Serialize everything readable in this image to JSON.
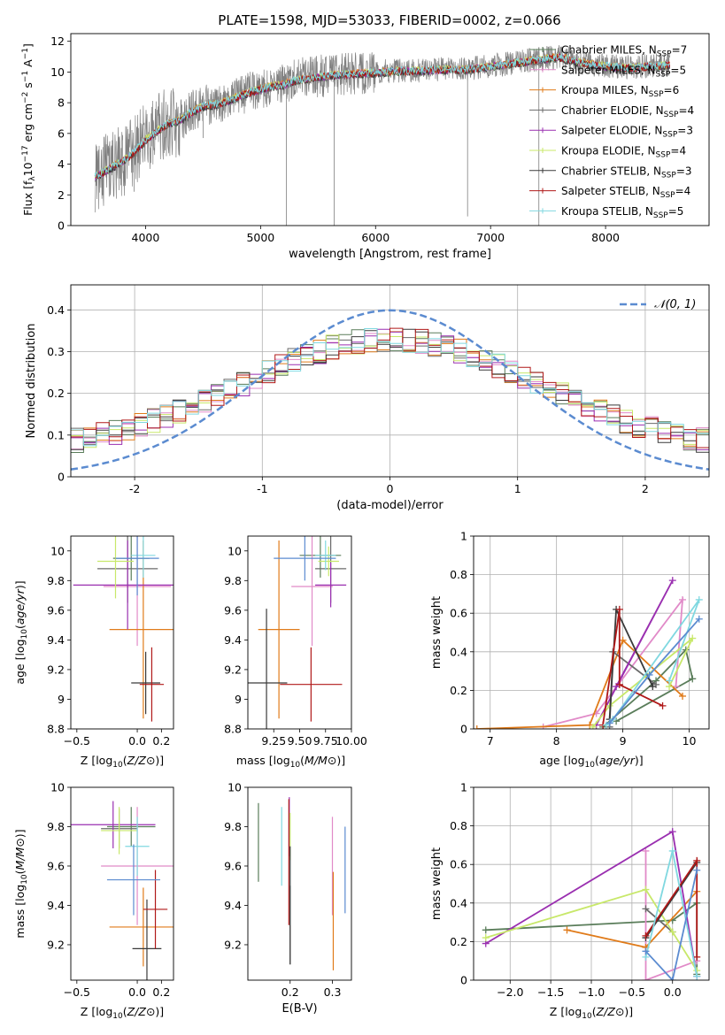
{
  "figure": {
    "title": "PLATE=1598, MJD=53033, FIBERID=0002, z=0.066"
  },
  "chart_data": [
    {
      "id": "spectrum",
      "type": "line",
      "xlabel": "wavelength [Angstrom, rest frame]",
      "ylabel": "Flux [f_λ10^-17 erg cm^-2 s^-1 A^-1]",
      "xlim": [
        3350,
        8900
      ],
      "ylim": [
        0,
        12.5
      ],
      "xticks": [
        4000,
        5000,
        6000,
        7000,
        8000
      ],
      "yticks": [
        0,
        2,
        4,
        6,
        8,
        10,
        12
      ],
      "grid": false,
      "legend_position": "upper-right",
      "data_series": {
        "name": "",
        "color": "#808080",
        "x_range": [
          3560,
          8560
        ],
        "y_start": 2.8,
        "y_end": 10.5
      },
      "models": [
        {
          "name": "Chabrier MILES",
          "nssp": "7",
          "color": "#5a7d5a"
        },
        {
          "name": "Salpeter MILES",
          "nssp": "5",
          "color": "#e18ac8"
        },
        {
          "name": "Kroupa MILES",
          "nssp": "6",
          "color": "#e07b1a"
        },
        {
          "name": "Chabrier ELODIE",
          "nssp": "4",
          "color": "#6a6a6a"
        },
        {
          "name": "Salpeter ELODIE",
          "nssp": "3",
          "color": "#9a2fb0"
        },
        {
          "name": "Kroupa ELODIE",
          "nssp": "4",
          "color": "#c8e86a"
        },
        {
          "name": "Chabrier STELIB",
          "nssp": "3",
          "color": "#3a3a3a"
        },
        {
          "name": "Salpeter STELIB",
          "nssp": "4",
          "color": "#b01818"
        },
        {
          "name": "Kroupa STELIB",
          "nssp": "5",
          "color": "#80d8e0"
        }
      ],
      "model_continuum": [
        [
          3560,
          3.2
        ],
        [
          3700,
          3.8
        ],
        [
          3800,
          4.2
        ],
        [
          3900,
          4.8
        ],
        [
          4000,
          5.6
        ],
        [
          4100,
          6.2
        ],
        [
          4200,
          6.7
        ],
        [
          4300,
          6.9
        ],
        [
          4400,
          7.4
        ],
        [
          4500,
          7.8
        ],
        [
          4600,
          7.9
        ],
        [
          4700,
          8.1
        ],
        [
          4800,
          8.4
        ],
        [
          4900,
          8.7
        ],
        [
          5000,
          8.9
        ],
        [
          5100,
          9.1
        ],
        [
          5200,
          9.2
        ],
        [
          5300,
          9.5
        ],
        [
          5400,
          9.6
        ],
        [
          5500,
          9.7
        ],
        [
          5600,
          9.8
        ],
        [
          5800,
          9.9
        ],
        [
          6000,
          10.0
        ],
        [
          6200,
          10.1
        ],
        [
          6400,
          10.1
        ],
        [
          6600,
          10.2
        ],
        [
          6800,
          10.2
        ],
        [
          7000,
          10.4
        ],
        [
          7200,
          10.6
        ],
        [
          7400,
          10.8
        ],
        [
          7600,
          11.0
        ],
        [
          7800,
          10.6
        ],
        [
          8000,
          10.4
        ],
        [
          8200,
          10.3
        ],
        [
          8400,
          10.4
        ],
        [
          8560,
          10.5
        ]
      ]
    },
    {
      "id": "residuals",
      "type": "line",
      "xlabel": "(data-model)/error",
      "ylabel": "Normed distribution",
      "xlim": [
        -2.5,
        2.5
      ],
      "ylim": [
        0,
        0.46
      ],
      "xticks": [
        -2,
        -1,
        0,
        1,
        2
      ],
      "yticks": [
        0.0,
        0.1,
        0.2,
        0.3,
        0.4
      ],
      "grid": true,
      "legend_position": "upper-right",
      "legend_label": "𝒩(0, 1)",
      "gaussian": {
        "mu": 0,
        "sigma": 1,
        "color": "#5b8bd0"
      },
      "histogram_bin_width": 0.1
    },
    {
      "id": "age_vs_Z",
      "type": "scatter",
      "xlabel": "Z [log10(Z/Z⊙)]",
      "ylabel": "age [log10(age/yr)]",
      "xlim": [
        -0.55,
        0.3
      ],
      "ylim": [
        8.8,
        10.1
      ],
      "xticks": [
        -0.5,
        0.0,
        0.2
      ],
      "xticklabels": [
        "−0.5",
        "0.0",
        "0.2"
      ],
      "yticks": [
        8.8,
        9.0,
        9.2,
        9.4,
        9.6,
        9.8,
        10.0
      ],
      "points": [
        {
          "x": -0.05,
          "y": 9.95,
          "xerr": 0.15,
          "yerr": 0.15,
          "color": "#5a7d5a"
        },
        {
          "x": 0.0,
          "y": 9.76,
          "xerr": 0.28,
          "yerr": 0.4,
          "color": "#e18ac8"
        },
        {
          "x": 0.05,
          "y": 9.47,
          "xerr": 0.28,
          "yerr": 0.6,
          "color": "#e07b1a"
        },
        {
          "x": -0.08,
          "y": 9.88,
          "xerr": 0.25,
          "yerr": 0.23,
          "color": "#6a6a6a"
        },
        {
          "x": -0.08,
          "y": 9.77,
          "xerr": 0.45,
          "yerr": 0.3,
          "color": "#9a2fb0"
        },
        {
          "x": -0.18,
          "y": 9.93,
          "xerr": 0.15,
          "yerr": 0.25,
          "color": "#c8e86a"
        },
        {
          "x": 0.07,
          "y": 9.11,
          "xerr": 0.12,
          "yerr": 0.21,
          "color": "#3a3a3a"
        },
        {
          "x": 0.12,
          "y": 9.1,
          "xerr": 0.1,
          "yerr": 0.25,
          "color": "#b01818"
        },
        {
          "x": 0.05,
          "y": 9.97,
          "xerr": 0.1,
          "yerr": 0.15,
          "color": "#80d8e0"
        },
        {
          "x": 0.0,
          "y": 9.95,
          "xerr": 0.18,
          "yerr": 0.25,
          "color": "#5b8bd0"
        }
      ]
    },
    {
      "id": "age_vs_mass",
      "type": "scatter",
      "xlabel": "mass [log10(M/M⊙)]",
      "ylabel": "",
      "xlim": [
        9.0,
        10.0
      ],
      "ylim": [
        8.8,
        10.1
      ],
      "xticks": [
        9.25,
        9.5,
        9.75,
        10.0
      ],
      "xticklabels": [
        "9.25",
        "9.50",
        "9.75",
        "10.00"
      ],
      "yticks": [
        8.8,
        9.0,
        9.2,
        9.4,
        9.6,
        9.8,
        10.0
      ],
      "points": [
        {
          "x": 9.7,
          "y": 9.97,
          "xerr": 0.2,
          "yerr": 0.15,
          "color": "#5a7d5a"
        },
        {
          "x": 9.62,
          "y": 9.76,
          "xerr": 0.2,
          "yerr": 0.4,
          "color": "#e18ac8"
        },
        {
          "x": 9.3,
          "y": 9.47,
          "xerr": 0.2,
          "yerr": 0.6,
          "color": "#e07b1a"
        },
        {
          "x": 9.8,
          "y": 9.88,
          "xerr": 0.15,
          "yerr": 0.23,
          "color": "#6a6a6a"
        },
        {
          "x": 9.8,
          "y": 9.77,
          "xerr": 0.15,
          "yerr": 0.15,
          "color": "#9a2fb0"
        },
        {
          "x": 9.78,
          "y": 9.93,
          "xerr": 0.1,
          "yerr": 0.1,
          "color": "#c8e86a"
        },
        {
          "x": 9.18,
          "y": 9.11,
          "xerr": 0.2,
          "yerr": 0.5,
          "color": "#3a3a3a"
        },
        {
          "x": 9.61,
          "y": 9.1,
          "xerr": 0.3,
          "yerr": 0.25,
          "color": "#b01818"
        },
        {
          "x": 9.75,
          "y": 9.97,
          "xerr": 0.1,
          "yerr": 0.1,
          "color": "#80d8e0"
        },
        {
          "x": 9.55,
          "y": 9.95,
          "xerr": 0.3,
          "yerr": 0.15,
          "color": "#5b8bd0"
        }
      ]
    },
    {
      "id": "mw_vs_age",
      "type": "line",
      "xlabel": "age [log10(age/yr)]",
      "ylabel": "mass weight",
      "xlim": [
        6.75,
        10.3
      ],
      "ylim": [
        0,
        1.0
      ],
      "xticks": [
        7,
        8,
        9,
        10
      ],
      "yticks": [
        0.0,
        0.2,
        0.4,
        0.6,
        0.8,
        1.0
      ],
      "grid": true,
      "series": [
        {
          "color": "#5a7d5a",
          "points": [
            [
              8.7,
              0.01
            ],
            [
              9.5,
              0.25
            ],
            [
              9.95,
              0.41
            ],
            [
              10.05,
              0.26
            ],
            [
              8.9,
              0.04
            ]
          ]
        },
        {
          "color": "#e18ac8",
          "points": [
            [
              7.8,
              0.01
            ],
            [
              8.6,
              0.08
            ],
            [
              9.9,
              0.67
            ],
            [
              9.8,
              0.22
            ]
          ]
        },
        {
          "color": "#e07b1a",
          "points": [
            [
              6.8,
              0.0
            ],
            [
              8.5,
              0.02
            ],
            [
              9.0,
              0.46
            ],
            [
              9.9,
              0.17
            ]
          ]
        },
        {
          "color": "#6a6a6a",
          "points": [
            [
              8.8,
              0.01
            ],
            [
              8.85,
              0.4
            ],
            [
              9.5,
              0.23
            ]
          ]
        },
        {
          "color": "#9a2fb0",
          "points": [
            [
              8.6,
              0.02
            ],
            [
              9.75,
              0.77
            ],
            [
              8.9,
              0.22
            ]
          ]
        },
        {
          "color": "#c8e86a",
          "points": [
            [
              8.55,
              0.01
            ],
            [
              8.8,
              0.12
            ],
            [
              10.05,
              0.47
            ],
            [
              9.7,
              0.22
            ]
          ]
        },
        {
          "color": "#3a3a3a",
          "points": [
            [
              8.8,
              0.05
            ],
            [
              8.9,
              0.62
            ],
            [
              9.45,
              0.22
            ]
          ]
        },
        {
          "color": "#b01818",
          "points": [
            [
              8.7,
              0.02
            ],
            [
              8.95,
              0.62
            ],
            [
              8.95,
              0.23
            ],
            [
              9.6,
              0.12
            ]
          ]
        },
        {
          "color": "#80d8e0",
          "points": [
            [
              8.75,
              0.02
            ],
            [
              8.85,
              0.05
            ],
            [
              10.15,
              0.67
            ],
            [
              9.7,
              0.25
            ]
          ]
        },
        {
          "color": "#5b8bd0",
          "points": [
            [
              8.8,
              0.03
            ],
            [
              9.4,
              0.28
            ],
            [
              10.15,
              0.57
            ]
          ]
        }
      ]
    },
    {
      "id": "mass_vs_Z",
      "type": "scatter",
      "xlabel": "Z [log10(Z/Z⊙)]",
      "ylabel": "mass [log10(M/M⊙)]",
      "xlim": [
        -0.55,
        0.3
      ],
      "ylim": [
        9.02,
        10.0
      ],
      "xticks": [
        -0.5,
        0.0,
        0.2
      ],
      "xticklabels": [
        "−0.5",
        "0.0",
        "0.2"
      ],
      "yticks": [
        9.2,
        9.4,
        9.6,
        9.8,
        10.0
      ],
      "points": [
        {
          "x": -0.05,
          "y": 9.8,
          "xerr": 0.2,
          "yerr": 0.1,
          "color": "#5a7d5a"
        },
        {
          "x": 0.0,
          "y": 9.6,
          "xerr": 0.3,
          "yerr": 0.3,
          "color": "#e18ac8"
        },
        {
          "x": 0.05,
          "y": 9.29,
          "xerr": 0.28,
          "yerr": 0.2,
          "color": "#e07b1a"
        },
        {
          "x": -0.15,
          "y": 9.79,
          "xerr": 0.15,
          "yerr": 0.1,
          "color": "#6a6a6a"
        },
        {
          "x": -0.2,
          "y": 9.81,
          "xerr": 0.35,
          "yerr": 0.12,
          "color": "#9a2fb0"
        },
        {
          "x": -0.15,
          "y": 9.78,
          "xerr": 0.15,
          "yerr": 0.12,
          "color": "#c8e86a"
        },
        {
          "x": 0.08,
          "y": 9.18,
          "xerr": 0.12,
          "yerr": 0.25,
          "color": "#3a3a3a"
        },
        {
          "x": 0.15,
          "y": 9.38,
          "xerr": 0.1,
          "yerr": 0.2,
          "color": "#b01818"
        },
        {
          "x": 0.0,
          "y": 9.7,
          "xerr": 0.1,
          "yerr": 0.15,
          "color": "#80d8e0"
        },
        {
          "x": -0.03,
          "y": 9.53,
          "xerr": 0.22,
          "yerr": 0.18,
          "color": "#5b8bd0"
        }
      ]
    },
    {
      "id": "mass_vs_ebv",
      "type": "scatter",
      "xlabel": "E(B-V)",
      "ylabel": "",
      "xlim": [
        0.1,
        0.345
      ],
      "ylim": [
        9.02,
        10.0
      ],
      "xticks": [
        0.2,
        0.3
      ],
      "xticklabels": [
        "0.2",
        "0.3"
      ],
      "yticks": [
        9.2,
        9.4,
        9.6,
        9.8,
        10.0
      ],
      "points": [
        {
          "x": 0.125,
          "y": 9.72,
          "xerr": 0,
          "yerr": 0.2,
          "color": "#5a7d5a"
        },
        {
          "x": 0.3,
          "y": 9.6,
          "xerr": 0,
          "yerr": 0.25,
          "color": "#e18ac8"
        },
        {
          "x": 0.302,
          "y": 9.32,
          "xerr": 0,
          "yerr": 0.25,
          "color": "#e07b1a"
        },
        {
          "x": 0.2,
          "y": 9.3,
          "xerr": 0,
          "yerr": 0.2,
          "color": "#6a6a6a"
        },
        {
          "x": 0.198,
          "y": 9.8,
          "xerr": 0,
          "yerr": 0.15,
          "color": "#9a2fb0"
        },
        {
          "x": 0.2,
          "y": 9.75,
          "xerr": 0,
          "yerr": 0.12,
          "color": "#c8e86a"
        },
        {
          "x": 0.2,
          "y": 9.4,
          "xerr": 0,
          "yerr": 0.3,
          "color": "#3a3a3a"
        },
        {
          "x": 0.197,
          "y": 9.62,
          "xerr": 0,
          "yerr": 0.32,
          "color": "#b01818"
        },
        {
          "x": 0.18,
          "y": 9.7,
          "xerr": 0,
          "yerr": 0.2,
          "color": "#80d8e0"
        },
        {
          "x": 0.33,
          "y": 9.58,
          "xerr": 0,
          "yerr": 0.22,
          "color": "#5b8bd0"
        }
      ]
    },
    {
      "id": "mw_vs_Z",
      "type": "line",
      "xlabel": "Z [log10(Z/Z⊙)]",
      "ylabel": "mass weight",
      "xlim": [
        -2.45,
        0.45
      ],
      "ylim": [
        0,
        1.0
      ],
      "xticks": [
        -2.0,
        -1.5,
        -1.0,
        -0.5,
        0.0
      ],
      "xticklabels": [
        "−2.0",
        "−1.5",
        "−1.0",
        "−0.5",
        "0.0"
      ],
      "yticks": [
        0.0,
        0.2,
        0.4,
        0.6,
        0.8,
        1.0
      ],
      "grid": true,
      "series": [
        {
          "color": "#5a7d5a",
          "points": [
            [
              -2.3,
              0.26
            ],
            [
              0.0,
              0.31
            ],
            [
              0.3,
              0.4
            ],
            [
              0.3,
              0.03
            ]
          ]
        },
        {
          "color": "#e18ac8",
          "points": [
            [
              -0.33,
              0.67
            ],
            [
              -0.33,
              0.0
            ],
            [
              0.3,
              0.1
            ]
          ]
        },
        {
          "color": "#e07b1a",
          "points": [
            [
              -1.3,
              0.26
            ],
            [
              -0.33,
              0.17
            ],
            [
              0.3,
              0.46
            ]
          ]
        },
        {
          "color": "#6a6a6a",
          "points": [
            [
              -0.33,
              0.37
            ],
            [
              0.0,
              0.25
            ]
          ]
        },
        {
          "color": "#9a2fb0",
          "points": [
            [
              -2.3,
              0.19
            ],
            [
              0.0,
              0.77
            ],
            [
              0.3,
              0.02
            ]
          ]
        },
        {
          "color": "#c8e86a",
          "points": [
            [
              -2.3,
              0.22
            ],
            [
              -0.33,
              0.47
            ],
            [
              0.0,
              0.25
            ],
            [
              0.3,
              0.05
            ]
          ]
        },
        {
          "color": "#3a3a3a",
          "points": [
            [
              -0.33,
              0.22
            ],
            [
              0.3,
              0.61
            ]
          ]
        },
        {
          "color": "#b01818",
          "points": [
            [
              -0.33,
              0.23
            ],
            [
              0.3,
              0.62
            ],
            [
              0.3,
              0.12
            ]
          ]
        },
        {
          "color": "#80d8e0",
          "points": [
            [
              -0.33,
              0.12
            ],
            [
              0.0,
              0.67
            ],
            [
              0.3,
              0.02
            ]
          ]
        },
        {
          "color": "#5b8bd0",
          "points": [
            [
              -0.33,
              0.15
            ],
            [
              0.0,
              0.0
            ],
            [
              0.3,
              0.57
            ]
          ]
        }
      ]
    }
  ]
}
